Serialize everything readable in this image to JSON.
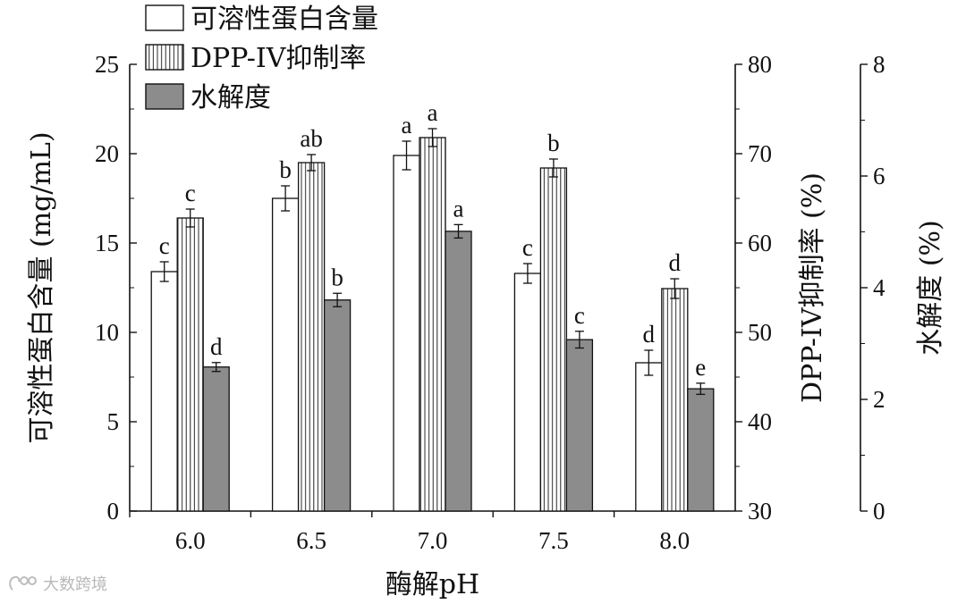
{
  "chart_data": {
    "type": "bar",
    "categories": [
      "6.0",
      "6.5",
      "7.0",
      "7.5",
      "8.0"
    ],
    "xlabel": "酶解pH",
    "axes": {
      "left": {
        "label": "可溶性蛋白含量 (mg/mL)",
        "min": 0,
        "max": 25,
        "ticks": [
          0,
          5,
          10,
          15,
          20,
          25
        ]
      },
      "right1": {
        "label": "DPP-IV抑制率 (%)",
        "min": 30,
        "max": 80,
        "ticks": [
          30,
          40,
          50,
          60,
          70,
          80
        ]
      },
      "right2": {
        "label": "水解度 (%)",
        "min": 0,
        "max": 8,
        "ticks": [
          0,
          2,
          4,
          6,
          8
        ]
      }
    },
    "legend_position": "top-left",
    "series": [
      {
        "name": "可溶性蛋白含量",
        "axis": "left",
        "pattern": "white",
        "values": [
          13.4,
          17.5,
          19.9,
          13.3,
          8.3
        ],
        "errors": [
          0.55,
          0.7,
          0.8,
          0.55,
          0.7
        ],
        "labels": [
          "c",
          "b",
          "a",
          "c",
          "d"
        ]
      },
      {
        "name": "DPP-IV抑制率",
        "axis": "right1",
        "pattern": "striped",
        "values": [
          62.8,
          69.0,
          71.8,
          68.4,
          54.9
        ],
        "errors": [
          1.0,
          0.9,
          1.0,
          1.0,
          1.1
        ],
        "labels": [
          "c",
          "ab",
          "a",
          "b",
          "d"
        ]
      },
      {
        "name": "水解度",
        "axis": "right2",
        "pattern": "gray",
        "values": [
          2.58,
          3.78,
          5.01,
          3.07,
          2.19
        ],
        "errors": [
          0.08,
          0.12,
          0.12,
          0.15,
          0.1
        ],
        "labels": [
          "d",
          "b",
          "a",
          "c",
          "e"
        ]
      }
    ],
    "colors": {
      "gray_bar": "#8c8c8c",
      "stroke": "#111111"
    }
  },
  "watermark": {
    "text": "大数跨境",
    "icon": "logo-icon"
  }
}
